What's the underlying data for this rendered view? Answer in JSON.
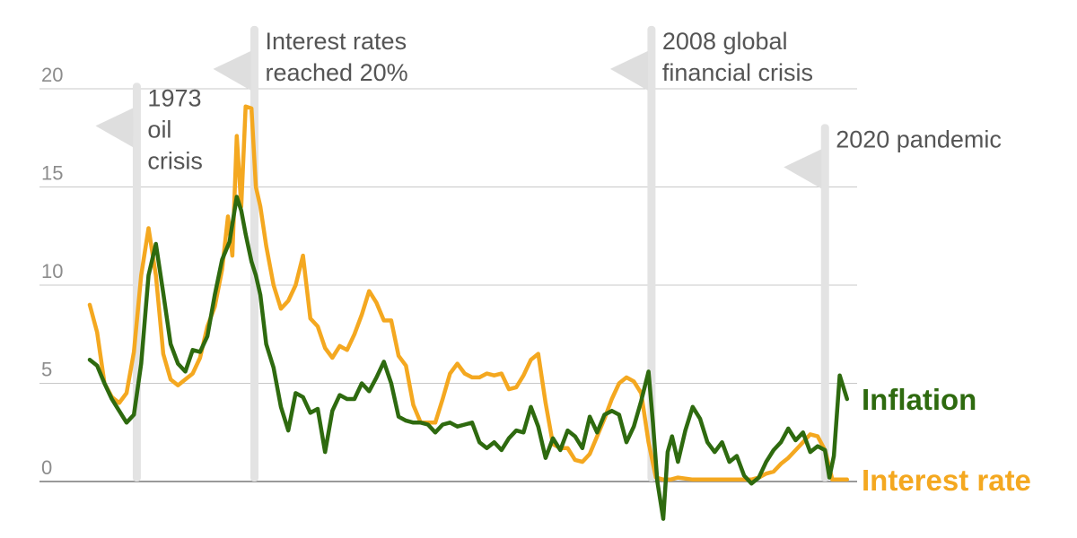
{
  "chart_data": {
    "type": "line",
    "title": "",
    "xlabel": "",
    "ylabel": "",
    "ylim": [
      -2,
      21
    ],
    "y_ticks": [
      {
        "value": 0,
        "label": "0"
      },
      {
        "value": 5,
        "label": "5"
      },
      {
        "value": 10,
        "label": "10"
      },
      {
        "value": 15,
        "label": "15"
      },
      {
        "value": 20,
        "label": "20"
      }
    ],
    "x_range": [
      1970,
      2022
    ],
    "grid": true,
    "series": [
      {
        "name": "Inflation",
        "color": "#2e6a0f",
        "x": [
          1970,
          1970.5,
          1971,
          1971.5,
          1972,
          1972.5,
          1973,
          1973.5,
          1974,
          1974.5,
          1975,
          1975.5,
          1976,
          1976.5,
          1977,
          1977.5,
          1978,
          1978.5,
          1979,
          1979.5,
          1980,
          1980.3,
          1980.6,
          1981,
          1981.3,
          1981.6,
          1982,
          1982.5,
          1983,
          1983.5,
          1984,
          1984.5,
          1985,
          1985.5,
          1986,
          1986.5,
          1987,
          1987.5,
          1988,
          1988.5,
          1989,
          1989.5,
          1990,
          1990.5,
          1991,
          1991.5,
          1992,
          1992.5,
          1993,
          1993.5,
          1994,
          1994.5,
          1995,
          1995.5,
          1996,
          1996.5,
          1997,
          1997.5,
          1998,
          1998.5,
          1999,
          1999.5,
          2000,
          2000.5,
          2001,
          2001.5,
          2002,
          2002.5,
          2003,
          2003.5,
          2004,
          2004.5,
          2005,
          2005.5,
          2006,
          2006.5,
          2007,
          2007.5,
          2008,
          2008.3,
          2008.6,
          2009,
          2009.3,
          2009.6,
          2010,
          2010.5,
          2011,
          2011.5,
          2012,
          2012.5,
          2013,
          2013.5,
          2014,
          2014.5,
          2015,
          2015.5,
          2016,
          2016.5,
          2017,
          2017.5,
          2018,
          2018.5,
          2019,
          2019.5,
          2020,
          2020.3,
          2020.6,
          2021,
          2021.5
        ],
        "values": [
          6.2,
          5.9,
          5.0,
          4.2,
          3.6,
          3.0,
          3.4,
          6.0,
          10.5,
          12.1,
          9.6,
          7.0,
          6.0,
          5.6,
          6.7,
          6.6,
          7.4,
          9.5,
          11.3,
          12.2,
          14.5,
          13.8,
          12.6,
          11.2,
          10.5,
          9.5,
          7.0,
          5.8,
          3.8,
          2.6,
          4.5,
          4.3,
          3.5,
          3.7,
          1.5,
          3.6,
          4.4,
          4.2,
          4.2,
          5.0,
          4.6,
          5.3,
          6.1,
          5.0,
          3.3,
          3.1,
          3.0,
          3.0,
          2.9,
          2.5,
          2.9,
          3.0,
          2.8,
          2.9,
          3.0,
          2.0,
          1.7,
          2.0,
          1.6,
          2.2,
          2.6,
          2.5,
          3.8,
          2.8,
          1.2,
          2.2,
          1.6,
          2.6,
          2.3,
          1.7,
          3.3,
          2.5,
          3.4,
          3.6,
          3.4,
          2.0,
          2.8,
          4.1,
          5.6,
          3.0,
          0.0,
          -1.9,
          1.5,
          2.3,
          1.0,
          2.6,
          3.8,
          3.2,
          2.0,
          1.5,
          2.0,
          1.0,
          1.3,
          0.3,
          -0.1,
          0.2,
          1.0,
          1.6,
          2.0,
          2.7,
          2.1,
          2.5,
          1.5,
          1.8,
          1.6,
          0.2,
          1.3,
          5.4,
          4.2
        ]
      },
      {
        "name": "Interest rate",
        "color": "#f4a820",
        "x": [
          1970,
          1970.5,
          1971,
          1971.5,
          1972,
          1972.5,
          1973,
          1973.5,
          1974,
          1974.5,
          1975,
          1975.5,
          1976,
          1976.5,
          1977,
          1977.5,
          1978,
          1978.5,
          1979,
          1979.4,
          1979.7,
          1980,
          1980.3,
          1980.6,
          1981,
          1981.3,
          1981.6,
          1982,
          1982.5,
          1983,
          1983.5,
          1984,
          1984.5,
          1985,
          1985.5,
          1986,
          1986.5,
          1987,
          1987.5,
          1988,
          1988.5,
          1989,
          1989.5,
          1990,
          1990.5,
          1991,
          1991.5,
          1992,
          1992.5,
          1993,
          1993.5,
          1994,
          1994.5,
          1995,
          1995.5,
          1996,
          1996.5,
          1997,
          1997.5,
          1998,
          1998.5,
          1999,
          1999.5,
          2000,
          2000.5,
          2001,
          2001.5,
          2002,
          2002.5,
          2003,
          2003.5,
          2004,
          2004.5,
          2005,
          2005.5,
          2006,
          2006.5,
          2007,
          2007.5,
          2008,
          2008.5,
          2009,
          2009.5,
          2010,
          2011,
          2012,
          2013,
          2014,
          2015,
          2015.5,
          2016,
          2016.5,
          2017,
          2017.5,
          2018,
          2018.5,
          2019,
          2019.5,
          2020,
          2020.5,
          2021,
          2021.5
        ],
        "values": [
          9.0,
          7.6,
          5.0,
          4.3,
          4.0,
          4.5,
          6.6,
          10.5,
          12.9,
          10.5,
          6.5,
          5.2,
          4.9,
          5.2,
          5.5,
          6.3,
          7.9,
          8.9,
          10.8,
          13.5,
          11.5,
          17.6,
          14.0,
          19.1,
          19.0,
          15.0,
          14.0,
          12.0,
          10.0,
          8.8,
          9.2,
          10.0,
          11.5,
          8.3,
          7.9,
          6.8,
          6.3,
          6.9,
          6.7,
          7.5,
          8.5,
          9.7,
          9.1,
          8.2,
          8.2,
          6.4,
          5.9,
          3.9,
          3.0,
          3.0,
          3.0,
          4.2,
          5.5,
          6.0,
          5.5,
          5.3,
          5.3,
          5.5,
          5.4,
          5.5,
          4.7,
          4.8,
          5.4,
          6.2,
          6.5,
          4.0,
          1.9,
          1.7,
          1.7,
          1.1,
          1.0,
          1.4,
          2.3,
          3.2,
          4.2,
          5.0,
          5.3,
          5.1,
          4.5,
          2.0,
          0.2,
          0.1,
          0.1,
          0.2,
          0.1,
          0.1,
          0.1,
          0.1,
          0.1,
          0.2,
          0.4,
          0.5,
          0.9,
          1.2,
          1.6,
          2.0,
          2.4,
          2.3,
          1.6,
          0.1,
          0.1,
          0.1
        ]
      }
    ],
    "annotations": [
      {
        "text": "1973\noil\ncrisis",
        "x": 1973.2,
        "y_top": 20.3
      },
      {
        "text": "Interest rates\nreached 20%",
        "x": 1981.2,
        "y_top": 23.2
      },
      {
        "text": "2008 global\nfinancial crisis",
        "x": 2008.2,
        "y_top": 23.2
      },
      {
        "text": "2020 pandemic",
        "x": 2020.0,
        "y_top": 18.2
      }
    ]
  }
}
